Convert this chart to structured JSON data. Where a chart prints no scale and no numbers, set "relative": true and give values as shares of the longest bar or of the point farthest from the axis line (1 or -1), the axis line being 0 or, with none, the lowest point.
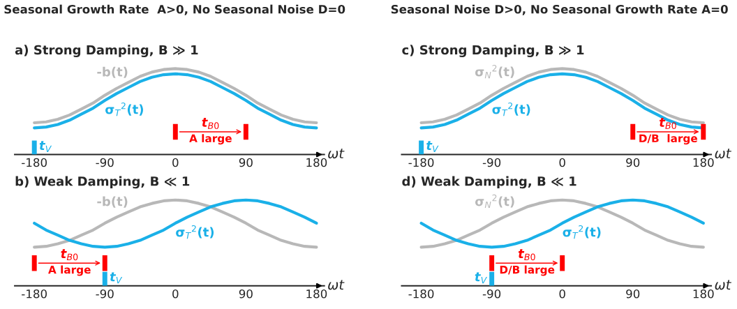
{
  "chart_data": [
    {
      "type": "line",
      "title": "Seasonal Growth Rate  A>0, No Seasonal Noise D=0",
      "subtitle": "a) Strong Damping, B ≫ 1",
      "xlabel": "ωt",
      "relative": true,
      "legend": false,
      "grid": false,
      "tick_labels": "x",
      "x": [
        -180,
        -165,
        -150,
        -135,
        -120,
        -105,
        -90,
        -75,
        -60,
        -45,
        -30,
        -15,
        0,
        15,
        30,
        45,
        60,
        75,
        90,
        105,
        120,
        135,
        150,
        165,
        180
      ],
      "xlim": [
        -205,
        190
      ],
      "xticks": [
        -180,
        -90,
        0,
        90,
        180
      ],
      "series": [
        {
          "name": "-b(t)",
          "color": "#b8b8b8",
          "values": [
            0.37,
            0.38,
            0.41,
            0.46,
            0.53,
            0.6,
            0.69,
            0.77,
            0.84,
            0.91,
            0.96,
            0.99,
            1.0,
            0.99,
            0.96,
            0.91,
            0.84,
            0.77,
            0.69,
            0.6,
            0.53,
            0.46,
            0.41,
            0.38,
            0.37
          ]
        },
        {
          "name": "σ$_{T}$$^{2}$(t)",
          "color": "#1ab0e8",
          "values": [
            0.31,
            0.32,
            0.35,
            0.4,
            0.47,
            0.54,
            0.63,
            0.71,
            0.78,
            0.85,
            0.9,
            0.93,
            0.94,
            0.93,
            0.9,
            0.85,
            0.78,
            0.71,
            0.63,
            0.54,
            0.47,
            0.4,
            0.35,
            0.32,
            0.31
          ]
        }
      ],
      "ref_lines": [
        {
          "axis": "x",
          "value": -180,
          "label": "t$_{V}$",
          "color": "#1ab0e8"
        },
        {
          "axis": "x",
          "value": 0,
          "color": "#ff0000"
        },
        {
          "axis": "x",
          "value": 90,
          "color": "#ff0000"
        }
      ],
      "annotations": [
        "t$_{B0}$",
        "A large"
      ]
    },
    {
      "type": "line",
      "subtitle": "b) Weak Damping, B ≪ 1",
      "xlabel": "ωt",
      "relative": true,
      "legend": false,
      "grid": false,
      "tick_labels": "x",
      "x": [
        -180,
        -165,
        -150,
        -135,
        -120,
        -105,
        -90,
        -75,
        -60,
        -45,
        -30,
        -15,
        0,
        15,
        30,
        45,
        60,
        75,
        90,
        105,
        120,
        135,
        150,
        165,
        180
      ],
      "xlim": [
        -205,
        190
      ],
      "xticks": [
        -180,
        -90,
        0,
        90,
        180
      ],
      "series": [
        {
          "name": "-b(t)",
          "color": "#b8b8b8",
          "values": [
            0.45,
            0.46,
            0.49,
            0.53,
            0.59,
            0.65,
            0.73,
            0.8,
            0.86,
            0.92,
            0.96,
            0.99,
            1.0,
            0.99,
            0.96,
            0.92,
            0.86,
            0.8,
            0.73,
            0.65,
            0.59,
            0.53,
            0.49,
            0.46,
            0.45
          ]
        },
        {
          "name": "σ$_{T}$$^{2}$(t)",
          "color": "#1ab0e8",
          "values": [
            0.73,
            0.65,
            0.59,
            0.53,
            0.49,
            0.46,
            0.45,
            0.46,
            0.49,
            0.53,
            0.59,
            0.65,
            0.73,
            0.8,
            0.86,
            0.92,
            0.96,
            0.99,
            1.0,
            0.99,
            0.96,
            0.92,
            0.86,
            0.8,
            0.73
          ]
        }
      ],
      "ref_lines": [
        {
          "axis": "x",
          "value": -90,
          "label": "t$_{V}$",
          "color": "#1ab0e8"
        },
        {
          "axis": "x",
          "value": -180,
          "color": "#ff0000"
        },
        {
          "axis": "x",
          "value": -90,
          "color": "#ff0000"
        }
      ],
      "annotations": [
        "t$_{B0}$",
        "A large"
      ]
    },
    {
      "type": "line",
      "title": "Seasonal Noise D>0, No Seasonal Growth Rate A=0",
      "subtitle": "c) Strong Damping, B ≫ 1",
      "xlabel": "ωt",
      "relative": true,
      "legend": false,
      "grid": false,
      "tick_labels": "x",
      "x": [
        -180,
        -165,
        -150,
        -135,
        -120,
        -105,
        -90,
        -75,
        -60,
        -45,
        -30,
        -15,
        0,
        15,
        30,
        45,
        60,
        75,
        90,
        105,
        120,
        135,
        150,
        165,
        180
      ],
      "xlim": [
        -205,
        190
      ],
      "xticks": [
        -180,
        -90,
        0,
        90,
        180
      ],
      "series": [
        {
          "name": "σ$_{N}$$^{2}$(t)",
          "color": "#b8b8b8",
          "values": [
            0.37,
            0.38,
            0.41,
            0.46,
            0.53,
            0.6,
            0.69,
            0.77,
            0.84,
            0.91,
            0.96,
            0.99,
            1.0,
            0.99,
            0.96,
            0.91,
            0.84,
            0.77,
            0.69,
            0.6,
            0.53,
            0.46,
            0.41,
            0.38,
            0.37
          ]
        },
        {
          "name": "σ$_{T}$$^{2}$(t)",
          "color": "#1ab0e8",
          "values": [
            0.31,
            0.32,
            0.35,
            0.4,
            0.47,
            0.54,
            0.63,
            0.71,
            0.78,
            0.85,
            0.9,
            0.93,
            0.94,
            0.93,
            0.9,
            0.85,
            0.78,
            0.71,
            0.63,
            0.54,
            0.47,
            0.4,
            0.35,
            0.32,
            0.31
          ]
        }
      ],
      "ref_lines": [
        {
          "axis": "x",
          "value": -180,
          "label": "t$_{V}$",
          "color": "#1ab0e8"
        },
        {
          "axis": "x",
          "value": 90,
          "color": "#ff0000"
        },
        {
          "axis": "x",
          "value": 180,
          "color": "#ff0000"
        }
      ],
      "annotations": [
        "t$_{B0}$",
        "D/B  large"
      ]
    },
    {
      "type": "line",
      "subtitle": "d) Weak Damping, B ≪ 1",
      "xlabel": "ωt",
      "relative": true,
      "legend": false,
      "grid": false,
      "tick_labels": "x",
      "x": [
        -180,
        -165,
        -150,
        -135,
        -120,
        -105,
        -90,
        -75,
        -60,
        -45,
        -30,
        -15,
        0,
        15,
        30,
        45,
        60,
        75,
        90,
        105,
        120,
        135,
        150,
        165,
        180
      ],
      "xlim": [
        -205,
        190
      ],
      "xticks": [
        -180,
        -90,
        0,
        90,
        180
      ],
      "series": [
        {
          "name": "σ$_{N}$$^{2}$(t)",
          "color": "#b8b8b8",
          "values": [
            0.45,
            0.46,
            0.49,
            0.53,
            0.59,
            0.65,
            0.73,
            0.8,
            0.86,
            0.92,
            0.96,
            0.99,
            1.0,
            0.99,
            0.96,
            0.92,
            0.86,
            0.8,
            0.73,
            0.65,
            0.59,
            0.53,
            0.49,
            0.46,
            0.45
          ]
        },
        {
          "name": "σ$_{T}$$^{2}$(t)",
          "color": "#1ab0e8",
          "values": [
            0.73,
            0.65,
            0.59,
            0.53,
            0.49,
            0.46,
            0.45,
            0.46,
            0.49,
            0.53,
            0.59,
            0.65,
            0.73,
            0.8,
            0.86,
            0.92,
            0.96,
            0.99,
            1.0,
            0.99,
            0.96,
            0.92,
            0.86,
            0.8,
            0.73
          ]
        }
      ],
      "ref_lines": [
        {
          "axis": "x",
          "value": -90,
          "label": "t$_{V}$",
          "color": "#1ab0e8"
        },
        {
          "axis": "x",
          "value": -90,
          "color": "#ff0000"
        },
        {
          "axis": "x",
          "value": 0,
          "color": "#ff0000"
        }
      ],
      "annotations": [
        "t$_{B0}$",
        "D/B large"
      ]
    }
  ]
}
